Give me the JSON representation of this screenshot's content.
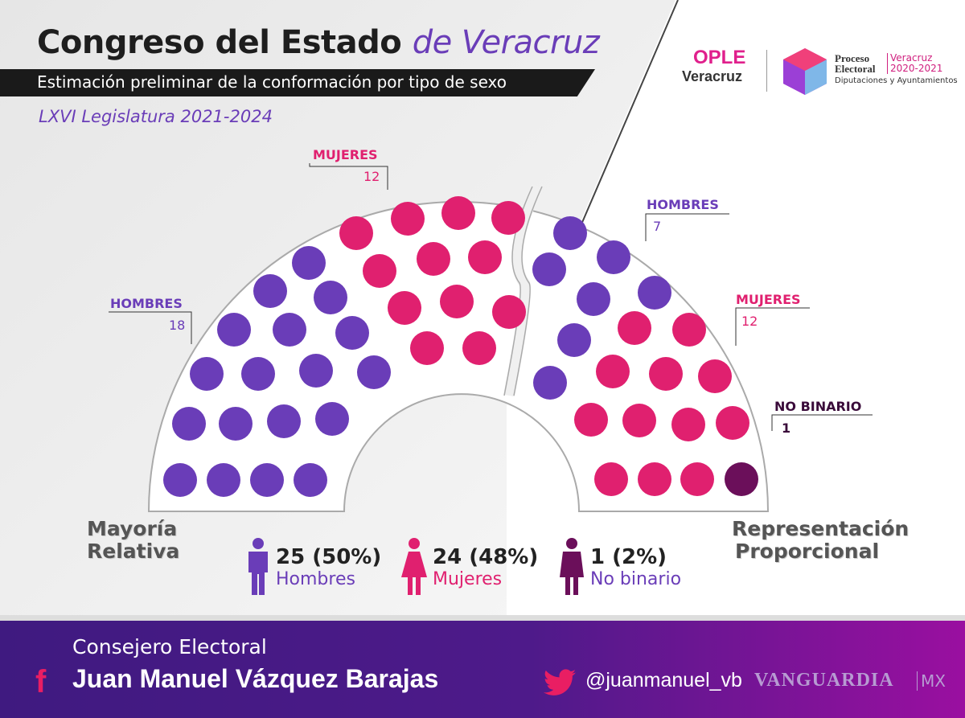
{
  "header": {
    "title_main": "Congreso del Estado",
    "title_accent": "de Veracruz",
    "subtitle": "Estimación preliminar de la conformación por tipo de sexo",
    "legislature": "LXVI Legislatura 2021-2024"
  },
  "logos": {
    "ople_top": "OPLE",
    "ople_bottom": "Veracruz",
    "proceso": "Proceso",
    "electoral": "Electoral",
    "veracruz": "Veracruz",
    "years": "2020-2021",
    "dip": "Diputaciones y Ayuntamientos"
  },
  "colors": {
    "hombres": "#6a3db8",
    "mujeres": "#e0206f",
    "no_binario": "#6b0f5a"
  },
  "chart_data": {
    "type": "parliament",
    "total": 50,
    "sections": [
      {
        "name": "Mayoría Relativa",
        "name_line1": "Mayoría",
        "name_line2": "Relativa",
        "groups": [
          {
            "label": "HOMBRES",
            "value": 18
          },
          {
            "label": "MUJERES",
            "value": 12
          }
        ]
      },
      {
        "name": "Representación Proporcional",
        "name_line1": "Representación",
        "name_line2": "Proporcional",
        "groups": [
          {
            "label": "HOMBRES",
            "value": 7
          },
          {
            "label": "MUJERES",
            "value": 12
          },
          {
            "label": "NO BINARIO",
            "value": 1
          }
        ]
      }
    ],
    "legend": [
      {
        "count": "25 (50%)",
        "label": "Hombres",
        "value": 25,
        "percent": 50
      },
      {
        "count": "24 (48%)",
        "label": "Mujeres",
        "value": 24,
        "percent": 48
      },
      {
        "count": "1 (2%)",
        "label": "No binario",
        "value": 1,
        "percent": 2
      }
    ]
  },
  "footer": {
    "role": "Consejero Electoral",
    "name": "Juan Manuel Vázquez Barajas",
    "handle": "@juanmanuel_vb",
    "brand": "VANGUARDIA",
    "brand_suffix": "MX"
  }
}
